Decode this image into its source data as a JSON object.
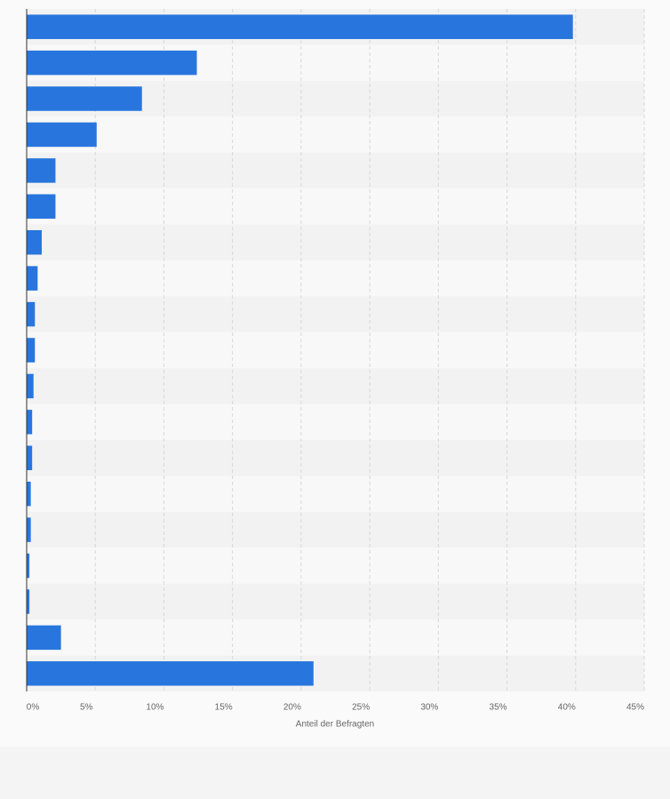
{
  "chart_data": {
    "type": "bar",
    "orientation": "horizontal",
    "x_label": "Anteil der Befragten",
    "categories": [
      null,
      null,
      null,
      null,
      null,
      null,
      null,
      null,
      null,
      null,
      null,
      null,
      null,
      null,
      null,
      null,
      null,
      null,
      null
    ],
    "values": [
      39.8,
      12.4,
      8.4,
      5.1,
      2.1,
      2.1,
      1.1,
      0.8,
      0.6,
      0.6,
      0.5,
      0.4,
      0.4,
      0.3,
      0.3,
      0.2,
      0.2,
      2.5,
      20.9
    ],
    "color": "#2876dd",
    "xlim": [
      0,
      45
    ],
    "xticks": [
      {
        "value": 0,
        "label": "0%"
      },
      {
        "value": 5,
        "label": "5%"
      },
      {
        "value": 10,
        "label": "10%"
      },
      {
        "value": 15,
        "label": "15%"
      },
      {
        "value": 20,
        "label": "20%"
      },
      {
        "value": 25,
        "label": "25%"
      },
      {
        "value": 30,
        "label": "30%"
      },
      {
        "value": 35,
        "label": "35%"
      },
      {
        "value": 40,
        "label": "40%"
      },
      {
        "value": 45,
        "label": "45%"
      }
    ],
    "grid": true
  }
}
